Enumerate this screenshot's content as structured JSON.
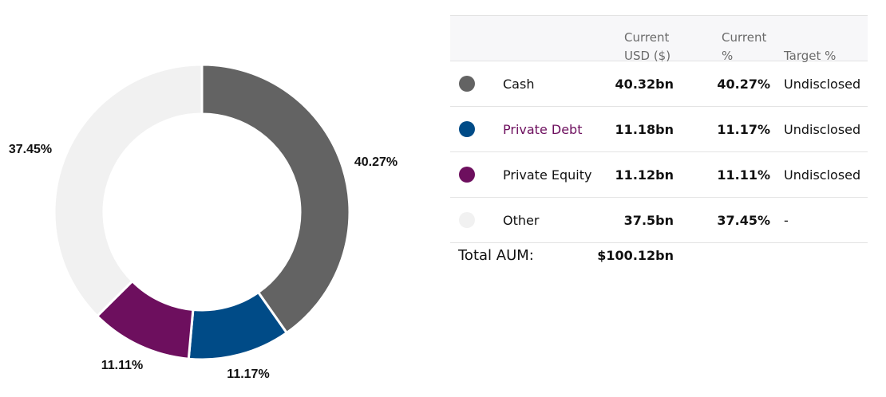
{
  "chart_data": {
    "type": "pie",
    "categories": [
      "Cash",
      "Private Debt",
      "Private Equity",
      "Other"
    ],
    "values": [
      40.27,
      11.17,
      11.11,
      37.45
    ],
    "value_labels": [
      "40.27%",
      "11.17%",
      "11.11%",
      "37.45%"
    ],
    "colors": [
      "#636363",
      "#004b87",
      "#6d0f5e",
      "#f1f1f1"
    ]
  },
  "table": {
    "headers": {
      "usd": "Current\nUSD ($)",
      "pct": "Current\n%",
      "target": "Target %"
    },
    "rows": [
      {
        "name": "Cash",
        "usd": "40.32bn",
        "pct": "40.27%",
        "target": "Undisclosed",
        "color": "#636363"
      },
      {
        "name": "Private Debt",
        "usd": "11.18bn",
        "pct": "11.17%",
        "target": "Undisclosed",
        "color": "#004b87"
      },
      {
        "name": "Private Equity",
        "usd": "11.12bn",
        "pct": "11.11%",
        "target": "Undisclosed",
        "color": "#6d0f5e"
      },
      {
        "name": "Other",
        "usd": "37.5bn",
        "pct": "37.45%",
        "target": "-",
        "color": "#f1f1f1"
      }
    ],
    "total_label": "Total AUM:",
    "total_value": "$100.12bn"
  }
}
